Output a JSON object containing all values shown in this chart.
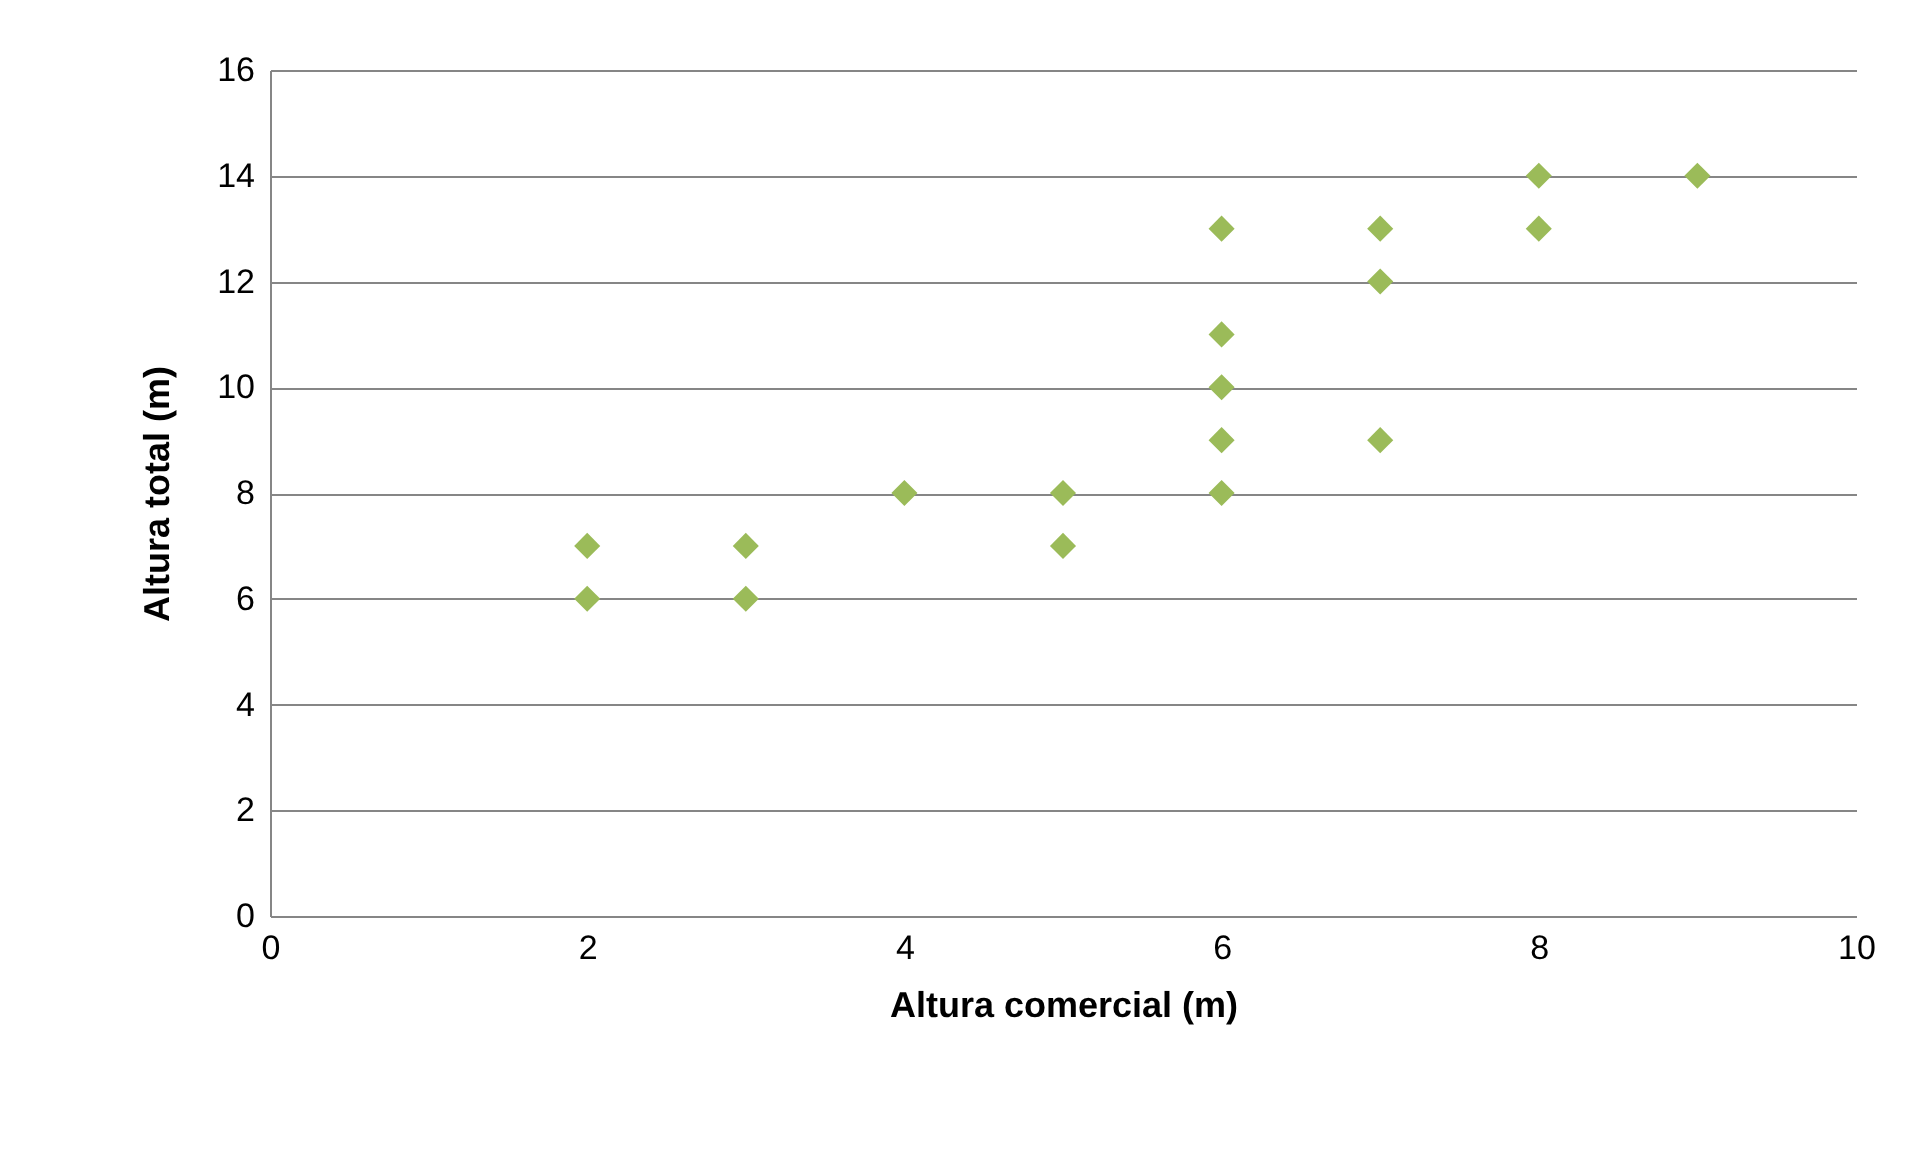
{
  "chart_data": {
    "type": "scatter",
    "xlabel": "Altura comercial (m)",
    "ylabel": "Altura total (m)",
    "x": [
      2,
      2,
      3,
      3,
      4,
      5,
      5,
      6,
      6,
      6,
      6,
      6,
      7,
      7,
      7,
      8,
      8,
      9
    ],
    "values": [
      7,
      6,
      7,
      6,
      8,
      8,
      7,
      13,
      11,
      10,
      9,
      8,
      13,
      12,
      9,
      14,
      13,
      14
    ],
    "color": "#9bbb59",
    "marker": "diamond",
    "grid": "y",
    "xlim": [
      0,
      10
    ],
    "xticks": [
      0,
      2,
      4,
      6,
      8,
      10
    ],
    "ylim": [
      0,
      16
    ],
    "yticks": [
      0,
      2,
      4,
      6,
      8,
      10,
      12,
      14,
      16
    ]
  }
}
